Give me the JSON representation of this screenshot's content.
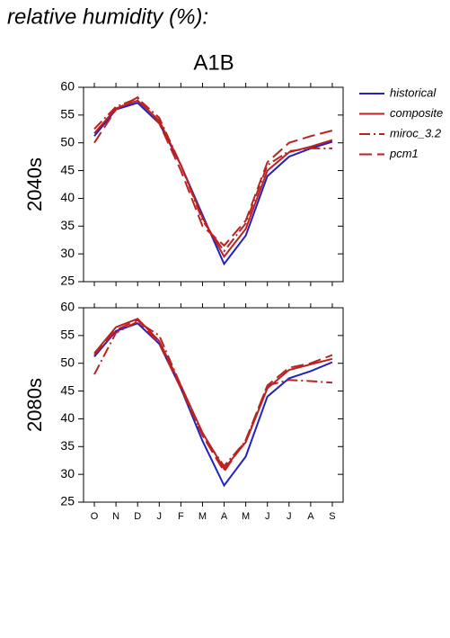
{
  "header": "relative humidity (%):",
  "chart_data": [
    {
      "type": "line",
      "title": "A1B",
      "ylabel": "2040s",
      "ylim": [
        25,
        60
      ],
      "yticks": [
        25,
        30,
        35,
        40,
        45,
        50,
        55,
        60
      ],
      "series": [
        {
          "name": "historical",
          "color": "#2222bb",
          "dash": "solid",
          "values": [
            51.2,
            56,
            57.2,
            53.5,
            46,
            37,
            28.2,
            33.3,
            44,
            47.5,
            49,
            50.2
          ]
        },
        {
          "name": "composite",
          "color": "#bb2222",
          "dash": "solid",
          "values": [
            51.7,
            56.2,
            57.6,
            54,
            46,
            36.5,
            29.5,
            34.5,
            45,
            48.3,
            49.3,
            50.5
          ]
        },
        {
          "name": "miroc_3.2",
          "color": "#bb2222",
          "dash": "dashdot",
          "values": [
            52.5,
            56.5,
            58,
            54.5,
            46,
            36,
            30.5,
            35.5,
            46,
            48.5,
            49,
            49
          ]
        },
        {
          "name": "pcm1",
          "color": "#bb2222",
          "dash": "dash",
          "values": [
            50,
            56,
            58.2,
            53.5,
            45,
            35,
            31.5,
            36,
            46.5,
            50,
            51.2,
            52.2
          ]
        }
      ]
    },
    {
      "type": "line",
      "ylabel": "2080s",
      "categories": [
        "O",
        "N",
        "D",
        "J",
        "F",
        "M",
        "A",
        "M",
        "J",
        "J",
        "A",
        "S"
      ],
      "ylim": [
        25,
        60
      ],
      "yticks": [
        25,
        30,
        35,
        40,
        45,
        50,
        55,
        60
      ],
      "series": [
        {
          "color": "#2222bb",
          "dash": "solid",
          "values": [
            51.2,
            55.8,
            57.2,
            53.5,
            45.5,
            36,
            28,
            33.2,
            44,
            47.3,
            48.6,
            50.2
          ]
        },
        {
          "color": "#bb2222",
          "dash": "solid",
          "values": [
            51.8,
            56.5,
            58,
            54,
            46,
            37.5,
            31,
            35.8,
            45.5,
            48.8,
            49.8,
            50.8
          ]
        },
        {
          "color": "#bb2222",
          "dash": "dashdot",
          "values": [
            48,
            55.5,
            57.5,
            55,
            46,
            37,
            31.5,
            36,
            46,
            47,
            46.8,
            46.5
          ]
        },
        {
          "color": "#bb2222",
          "dash": "dash",
          "values": [
            51.5,
            56,
            57.8,
            53.5,
            45.5,
            37,
            30.5,
            36.2,
            46,
            49.2,
            50,
            51.5
          ]
        }
      ]
    }
  ]
}
